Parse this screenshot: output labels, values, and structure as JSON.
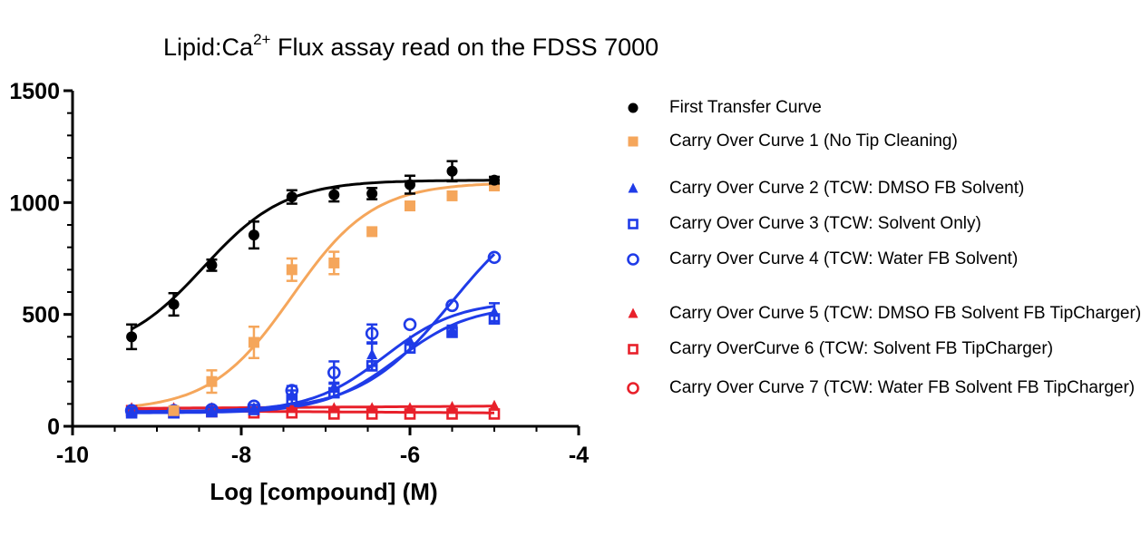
{
  "title_pre": "Lipid:Ca",
  "title_sup": "2+",
  "title_post": " Flux assay read on the FDSS 7000",
  "chart_data": {
    "type": "scatter",
    "xlabel": "Log [compound] (M)",
    "ylabel": "",
    "xlim": [
      -10,
      -4
    ],
    "ylim": [
      0,
      1500
    ],
    "xticks": [
      -10,
      -8,
      -6,
      -4
    ],
    "yticks": [
      0,
      500,
      1000,
      1500
    ],
    "xtick_labels": [
      "-10",
      "-8",
      "-6",
      "-4"
    ],
    "ytick_labels": [
      "0",
      "500",
      "1000",
      "1500"
    ],
    "grid": false,
    "legend_position": "right",
    "series": [
      {
        "name": "First Transfer Curve",
        "color": "#000000",
        "marker": "circle-filled",
        "x": [
          -9.3,
          -8.8,
          -8.35,
          -7.85,
          -7.4,
          -6.9,
          -6.45,
          -6.0,
          -5.5,
          -5.0
        ],
        "y": [
          400,
          545,
          720,
          855,
          1025,
          1035,
          1040,
          1080,
          1140,
          1100
        ],
        "err": [
          55,
          50,
          25,
          60,
          30,
          30,
          25,
          40,
          45,
          15
        ],
        "fit": {
          "bottom": 320,
          "top": 1100,
          "logec50": -8.45,
          "hill": 0.9
        }
      },
      {
        "name": "Carry Over Curve 1 (No Tip Cleaning)",
        "color": "#F5A65B",
        "marker": "square-filled",
        "x": [
          -8.8,
          -8.35,
          -7.85,
          -7.4,
          -6.9,
          -6.45,
          -6.0,
          -5.5,
          -5.0
        ],
        "y": [
          70,
          200,
          375,
          700,
          730,
          870,
          985,
          1030,
          1075
        ],
        "err": [
          0,
          50,
          70,
          50,
          50,
          0,
          0,
          0,
          20
        ],
        "fit": {
          "bottom": 70,
          "top": 1090,
          "logec50": -7.4,
          "hill": 0.9
        }
      },
      {
        "name": "Carry Over Curve 2 (TCW: DMSO FB Solvent)",
        "color": "#1F3BE8",
        "marker": "triangle-filled",
        "x": [
          -9.3,
          -8.8,
          -8.35,
          -7.85,
          -7.4,
          -6.9,
          -6.45,
          -6.0,
          -5.5,
          -5.0
        ],
        "y": [
          65,
          65,
          70,
          80,
          140,
          175,
          320,
          380,
          430,
          510
        ],
        "err": [
          0,
          0,
          0,
          0,
          20,
          20,
          50,
          0,
          20,
          40
        ],
        "fit": {
          "bottom": 65,
          "top": 560,
          "logec50": -6.3,
          "hill": 1.0
        }
      },
      {
        "name": "Carry Over Curve 3 (TCW: Solvent Only)",
        "color": "#1F3BE8",
        "marker": "square-open",
        "x": [
          -9.3,
          -8.8,
          -8.35,
          -7.85,
          -7.4,
          -6.9,
          -6.45,
          -6.0,
          -5.5,
          -5.0
        ],
        "y": [
          60,
          60,
          65,
          75,
          120,
          150,
          270,
          350,
          420,
          480
        ],
        "err": [
          0,
          0,
          0,
          0,
          20,
          20,
          20,
          20,
          20,
          20
        ],
        "fit": {
          "bottom": 60,
          "top": 540,
          "logec50": -6.15,
          "hill": 1.0
        }
      },
      {
        "name": "Carry Over Curve 4 (TCW: Water FB Solvent)",
        "color": "#1F3BE8",
        "marker": "circle-open",
        "x": [
          -9.3,
          -8.8,
          -8.35,
          -7.85,
          -7.4,
          -6.9,
          -6.45,
          -6.0,
          -5.5,
          -5.0
        ],
        "y": [
          70,
          70,
          75,
          90,
          160,
          240,
          415,
          455,
          540,
          755
        ],
        "err": [
          0,
          0,
          0,
          0,
          20,
          50,
          40,
          0,
          0,
          0
        ],
        "fit": {
          "bottom": 65,
          "top": 1050,
          "logec50": -5.5,
          "hill": 0.8
        }
      },
      {
        "name": "Carry Over Curve 5 (TCW: DMSO FB Solvent FB TipCharger)",
        "color": "#E8202A",
        "marker": "triangle-filled",
        "x": [
          -9.3,
          -8.8,
          -8.35,
          -7.85,
          -7.4,
          -6.9,
          -6.45,
          -6.0,
          -5.5,
          -5.0
        ],
        "y": [
          80,
          80,
          80,
          80,
          80,
          80,
          80,
          80,
          85,
          90
        ],
        "err": [
          0,
          0,
          0,
          0,
          0,
          0,
          0,
          0,
          0,
          0
        ],
        "fit": {
          "linear": [
            80,
            90
          ]
        }
      },
      {
        "name": "Carry OverCurve 6 (TCW: Solvent FB TipCharger)",
        "color": "#E8202A",
        "marker": "square-open",
        "x": [
          -9.3,
          -8.8,
          -8.35,
          -7.85,
          -7.4,
          -6.9,
          -6.45,
          -6.0,
          -5.5,
          -5.0
        ],
        "y": [
          70,
          60,
          65,
          60,
          60,
          55,
          55,
          55,
          55,
          55
        ],
        "err": [
          0,
          0,
          0,
          0,
          0,
          0,
          0,
          0,
          0,
          0
        ],
        "fit": {
          "linear": [
            70,
            60
          ]
        }
      },
      {
        "name": "Carry Over Curve 7 (TCW: Water FB Solvent FB TipCharger)",
        "color": "#E8202A",
        "marker": "circle-open",
        "x": [
          -9.3,
          -8.8,
          -8.35,
          -7.85,
          -7.4,
          -6.9,
          -6.45,
          -6.0,
          -5.5,
          -5.0
        ],
        "y": [
          85,
          85,
          85,
          85,
          80,
          80,
          80,
          85,
          85,
          95
        ],
        "err": [
          0,
          0,
          0,
          0,
          0,
          0,
          0,
          0,
          0,
          0
        ],
        "fit": {
          "linear": [
            82,
            90
          ]
        }
      }
    ]
  }
}
